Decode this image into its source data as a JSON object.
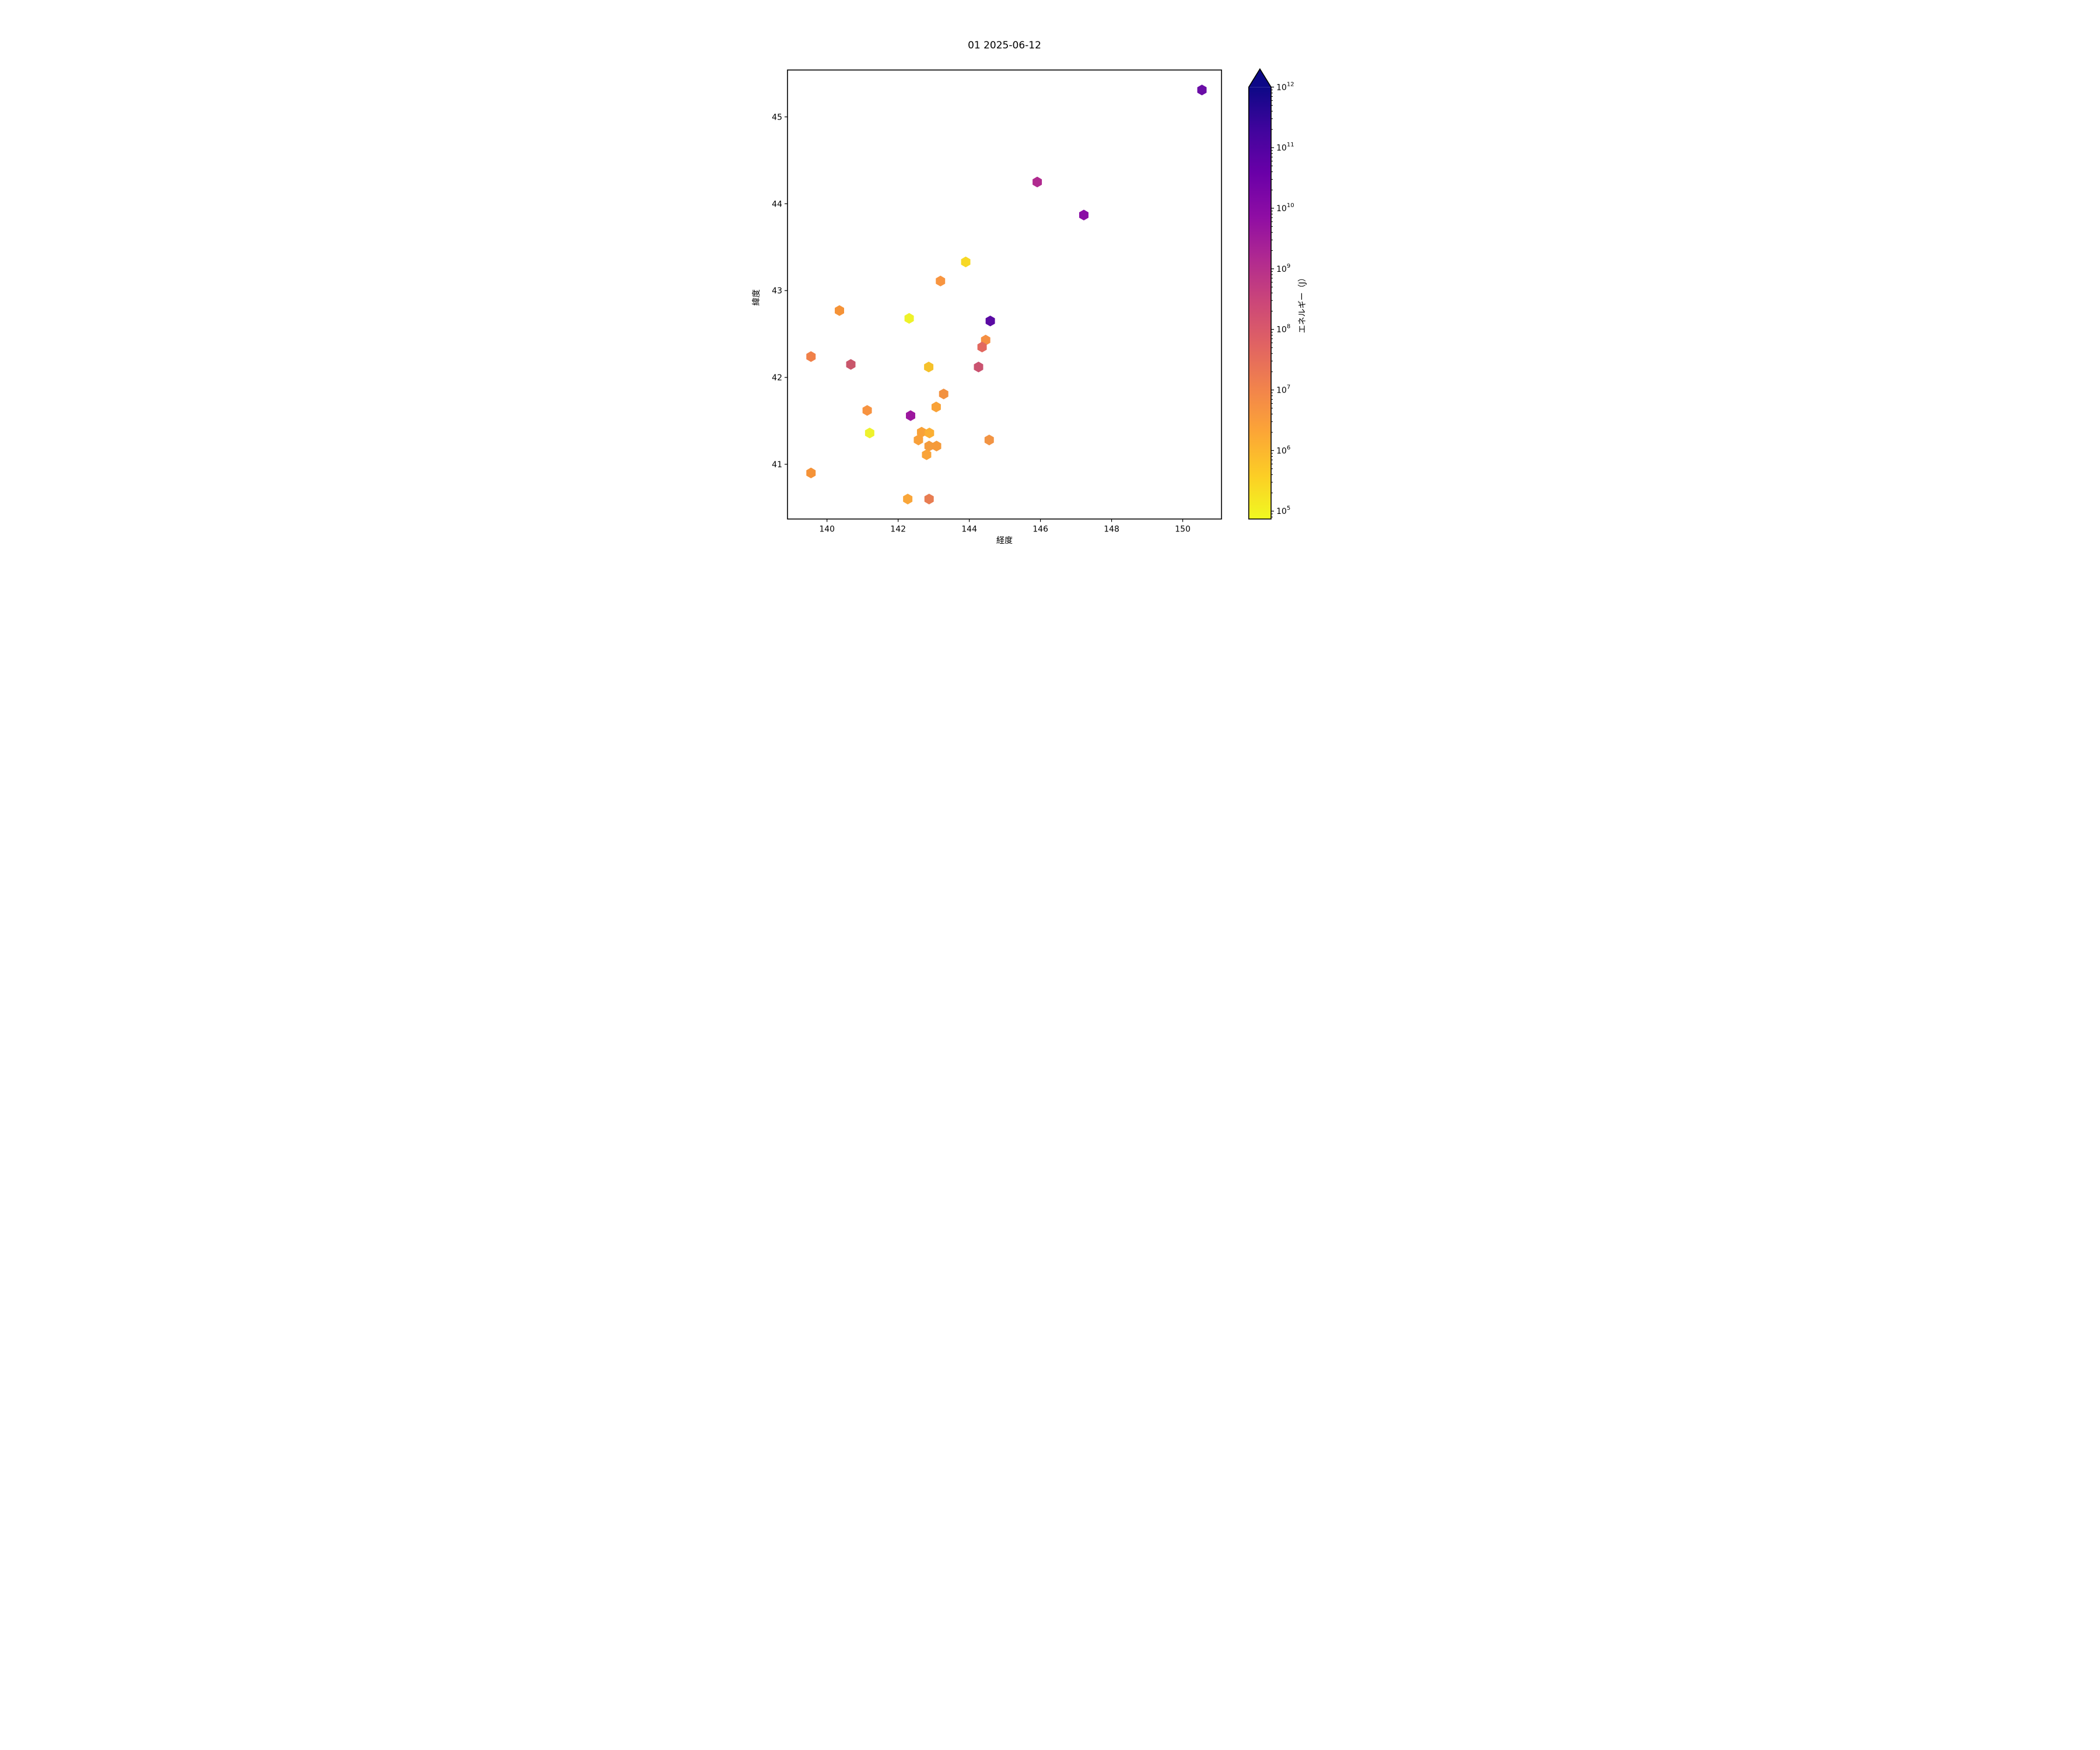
{
  "title": "01 2025-06-12",
  "chart_data": {
    "type": "scatter",
    "marker": "hexagon",
    "xlabel": "経度",
    "ylabel": "緯度",
    "xlim": [
      138.89,
      151.09
    ],
    "ylim": [
      40.37,
      45.54
    ],
    "xticks": [
      140,
      142,
      144,
      146,
      148,
      150
    ],
    "yticks": [
      41,
      42,
      43,
      44,
      45
    ],
    "grid": false,
    "legend": "none",
    "colorbar": {
      "label": "エネルギー（J）",
      "scale": "log",
      "colormap": "plasma_r",
      "extend": "max",
      "vmin_exponent": 4.87,
      "vmax_exponent": 12,
      "tick_exponents": [
        12,
        11,
        10,
        9,
        8,
        7,
        6,
        5
      ],
      "over_color": "#0d0887",
      "gradient_stops_top_to_bottom": [
        {
          "offset": 0.0,
          "color": "#0d0887"
        },
        {
          "offset": 0.1,
          "color": "#41049d"
        },
        {
          "offset": 0.2,
          "color": "#6a00a8"
        },
        {
          "offset": 0.3,
          "color": "#8f0da4"
        },
        {
          "offset": 0.4,
          "color": "#b12a90"
        },
        {
          "offset": 0.5,
          "color": "#cc4778"
        },
        {
          "offset": 0.6,
          "color": "#e16462"
        },
        {
          "offset": 0.7,
          "color": "#f2844b"
        },
        {
          "offset": 0.8,
          "color": "#fca636"
        },
        {
          "offset": 0.9,
          "color": "#fcce25"
        },
        {
          "offset": 1.0,
          "color": "#f0f921"
        }
      ]
    },
    "points": [
      {
        "lon": 150.54,
        "lat": 45.31,
        "energy_j": 40000000000.0,
        "color": "#6a0da6"
      },
      {
        "lon": 145.91,
        "lat": 44.25,
        "energy_j": 1500000000.0,
        "color": "#b02a8f"
      },
      {
        "lon": 147.22,
        "lat": 43.87,
        "energy_j": 10000000000.0,
        "color": "#8a0da5"
      },
      {
        "lon": 143.9,
        "lat": 43.33,
        "energy_j": 280000.0,
        "color": "#f7d825"
      },
      {
        "lon": 143.19,
        "lat": 43.11,
        "energy_j": 4000000.0,
        "color": "#f89540"
      },
      {
        "lon": 140.35,
        "lat": 42.77,
        "energy_j": 3500000.0,
        "color": "#f59338"
      },
      {
        "lon": 142.31,
        "lat": 42.68,
        "energy_j": 110000.0,
        "color": "#eef229"
      },
      {
        "lon": 144.59,
        "lat": 42.65,
        "energy_j": 100000000000.0,
        "color": "#5a0aa3"
      },
      {
        "lon": 139.55,
        "lat": 42.24,
        "energy_j": 9000000.0,
        "color": "#f08049"
      },
      {
        "lon": 140.67,
        "lat": 42.15,
        "energy_j": 200000000.0,
        "color": "#c9566b"
      },
      {
        "lon": 144.46,
        "lat": 42.43,
        "energy_j": 5000000.0,
        "color": "#f58f42"
      },
      {
        "lon": 144.36,
        "lat": 42.35,
        "energy_j": 40000000.0,
        "color": "#e2685f"
      },
      {
        "lon": 144.26,
        "lat": 42.12,
        "energy_j": 180000000.0,
        "color": "#ca5370"
      },
      {
        "lon": 142.86,
        "lat": 42.12,
        "energy_j": 700000.0,
        "color": "#f5c12b"
      },
      {
        "lon": 143.28,
        "lat": 41.81,
        "energy_j": 4500000.0,
        "color": "#f29140"
      },
      {
        "lon": 143.07,
        "lat": 41.66,
        "energy_j": 2500000.0,
        "color": "#f9a237"
      },
      {
        "lon": 141.13,
        "lat": 41.62,
        "energy_j": 3500000.0,
        "color": "#f79340"
      },
      {
        "lon": 142.35,
        "lat": 41.56,
        "energy_j": 3000000000.0,
        "color": "#9c179e"
      },
      {
        "lon": 141.2,
        "lat": 41.36,
        "energy_j": 120000.0,
        "color": "#eef22d"
      },
      {
        "lon": 142.66,
        "lat": 41.37,
        "energy_j": 2500000.0,
        "color": "#f8a137"
      },
      {
        "lon": 142.88,
        "lat": 41.36,
        "energy_j": 1500000.0,
        "color": "#fbaf33"
      },
      {
        "lon": 142.57,
        "lat": 41.28,
        "energy_j": 2500000.0,
        "color": "#f8a03a"
      },
      {
        "lon": 142.87,
        "lat": 41.21,
        "energy_j": 3000000.0,
        "color": "#f39b3c"
      },
      {
        "lon": 143.08,
        "lat": 41.21,
        "energy_j": 3000000.0,
        "color": "#f59a39"
      },
      {
        "lon": 142.8,
        "lat": 41.11,
        "energy_j": 2300000.0,
        "color": "#f9a338"
      },
      {
        "lon": 144.56,
        "lat": 41.28,
        "energy_j": 4000000.0,
        "color": "#f29444"
      },
      {
        "lon": 139.55,
        "lat": 40.9,
        "energy_j": 3500000.0,
        "color": "#f59338"
      },
      {
        "lon": 142.27,
        "lat": 40.6,
        "energy_j": 2000000.0,
        "color": "#f9a63a"
      },
      {
        "lon": 142.87,
        "lat": 40.6,
        "energy_j": 20000000.0,
        "color": "#e87d52"
      }
    ]
  }
}
